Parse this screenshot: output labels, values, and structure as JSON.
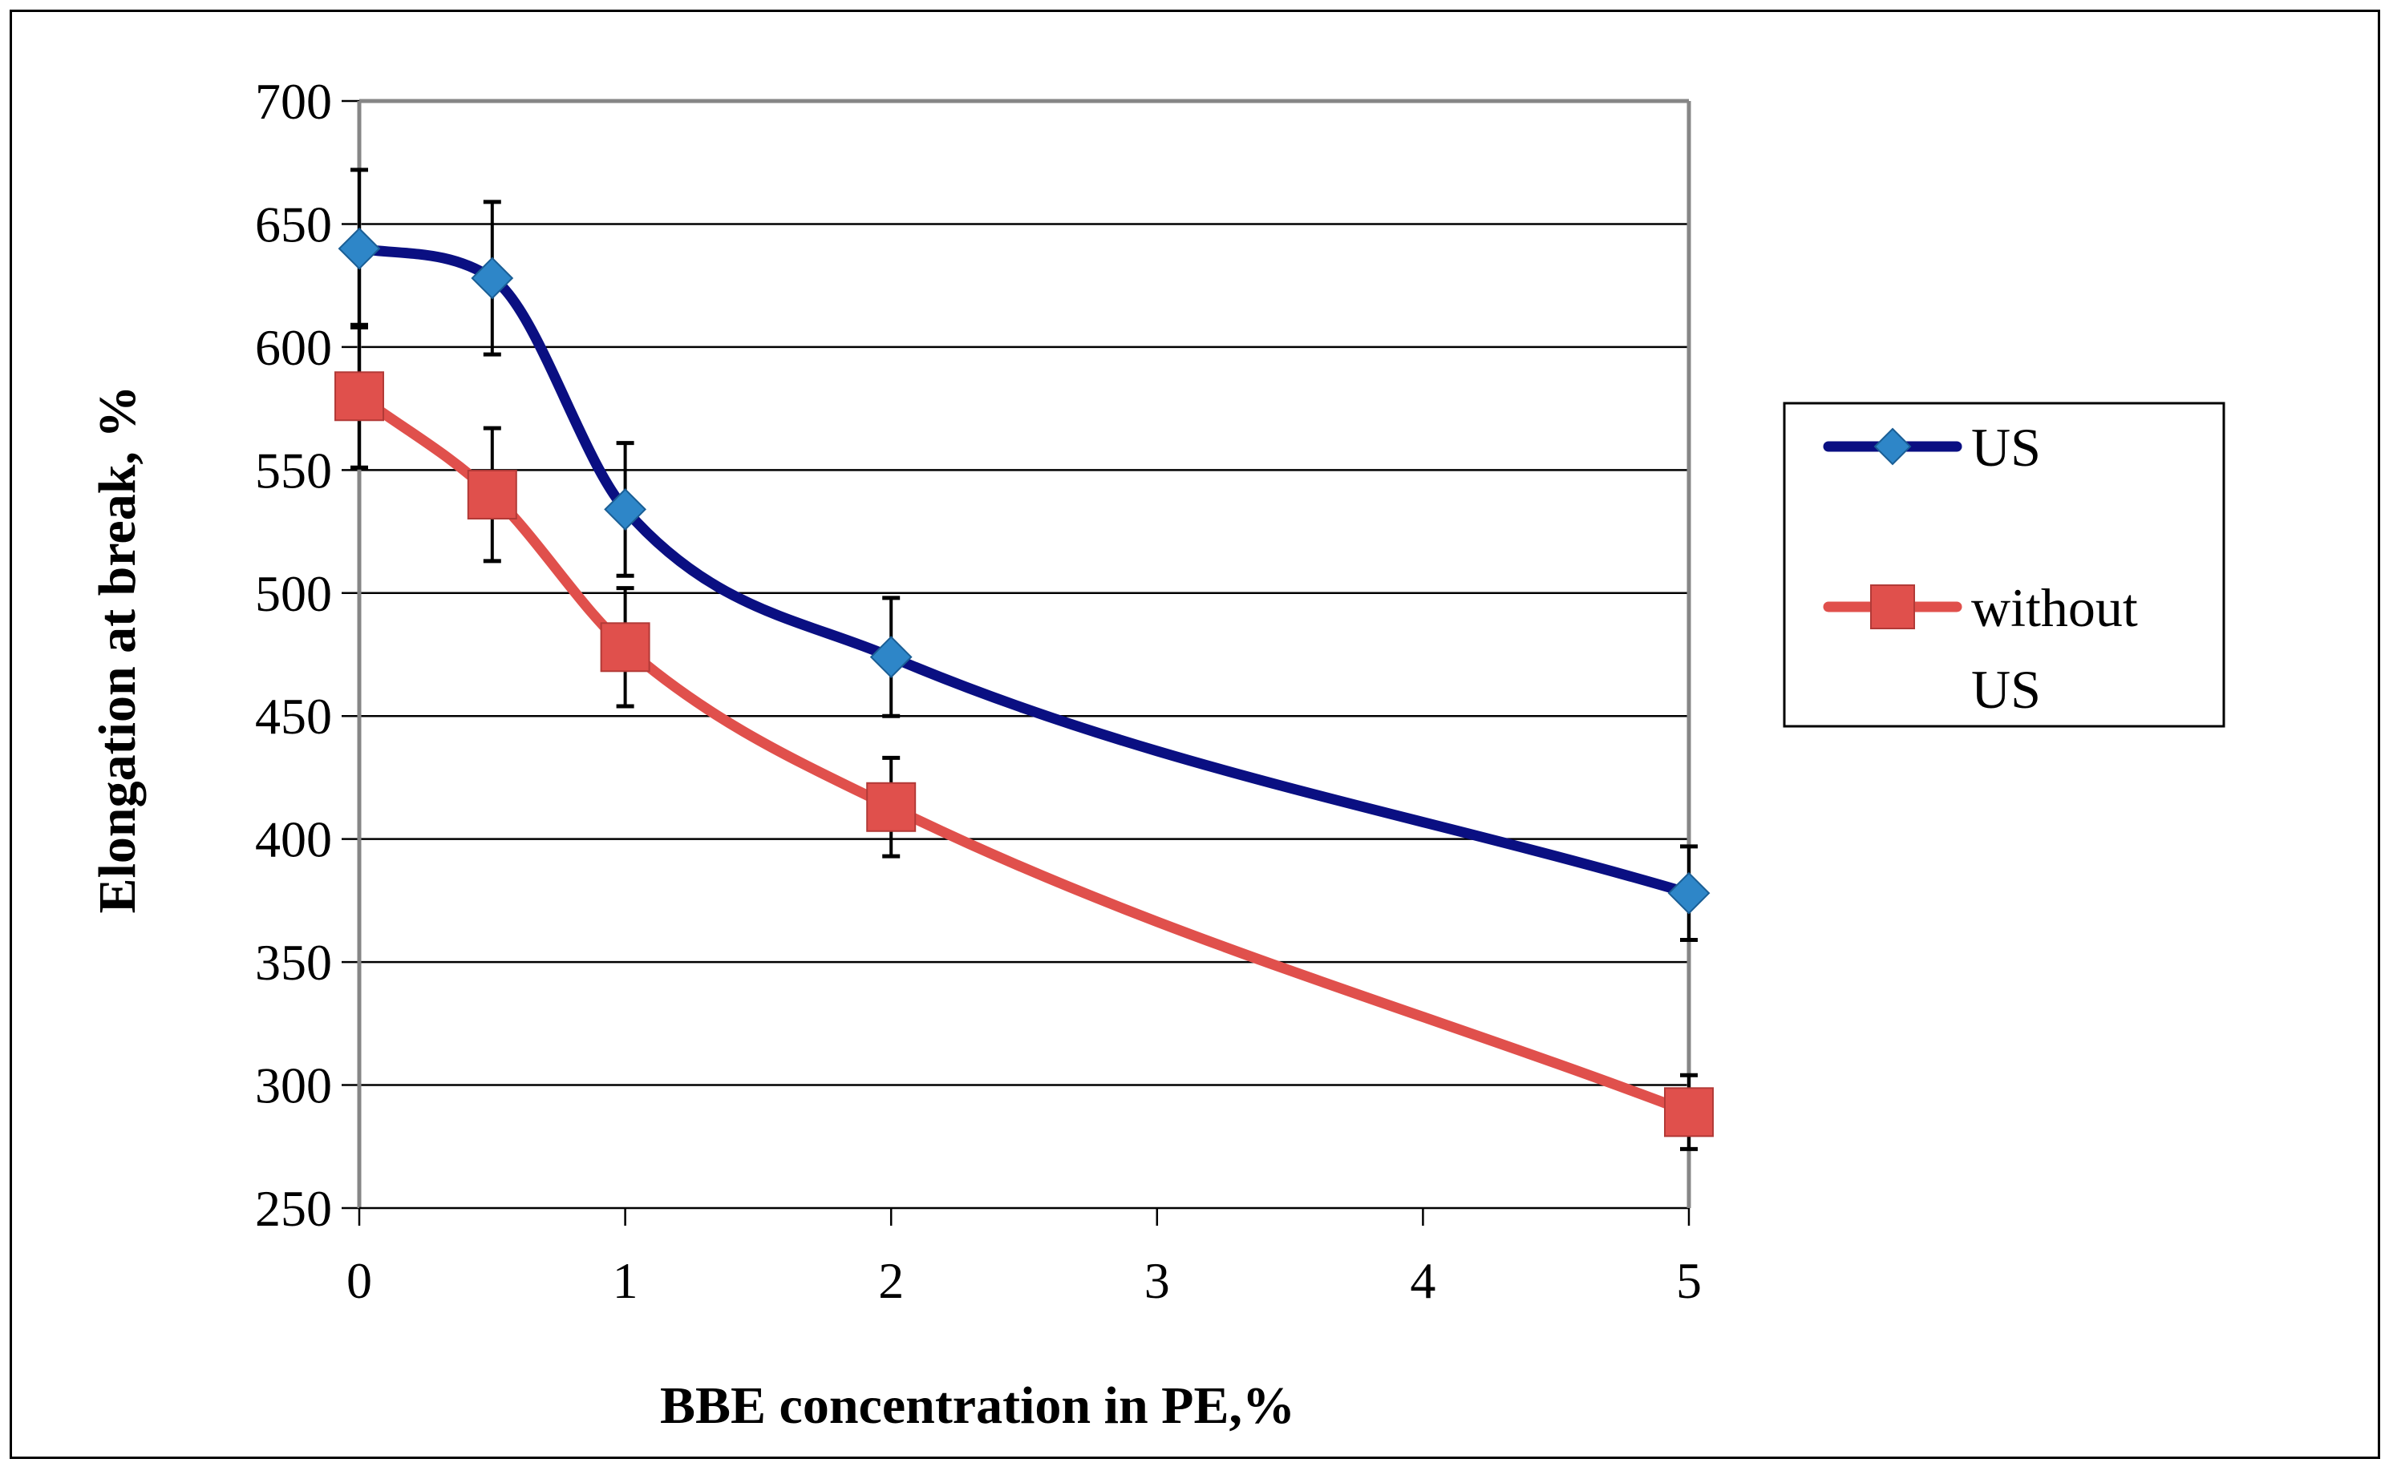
{
  "chart_data": {
    "type": "line",
    "title": "",
    "xlabel": "BBE concentration in PE,%",
    "ylabel": "Elongation at break, %",
    "xlim": [
      0,
      5
    ],
    "ylim": [
      250,
      700
    ],
    "x_ticks": [
      0,
      1,
      2,
      3,
      4,
      5
    ],
    "y_ticks": [
      250,
      300,
      350,
      400,
      450,
      500,
      550,
      600,
      650,
      700
    ],
    "grid": "horizontal",
    "legend_position": "right",
    "series": [
      {
        "name": "US",
        "legend_lines": [
          "US"
        ],
        "color": "#0a0f82",
        "marker_color": "#2e86c8",
        "marker": "diamond",
        "x": [
          0,
          0.5,
          1,
          2,
          5
        ],
        "values": [
          640,
          628,
          534,
          474,
          378
        ],
        "errors": [
          32,
          31,
          27,
          24,
          19
        ]
      },
      {
        "name": "without US",
        "legend_lines": [
          "without",
          "US"
        ],
        "color": "#e0504c",
        "marker_color": "#e0504c",
        "marker": "square",
        "x": [
          0,
          0.5,
          1,
          2,
          5
        ],
        "values": [
          580,
          540,
          478,
          413,
          289
        ],
        "errors": [
          29,
          27,
          24,
          20,
          15
        ]
      }
    ]
  }
}
